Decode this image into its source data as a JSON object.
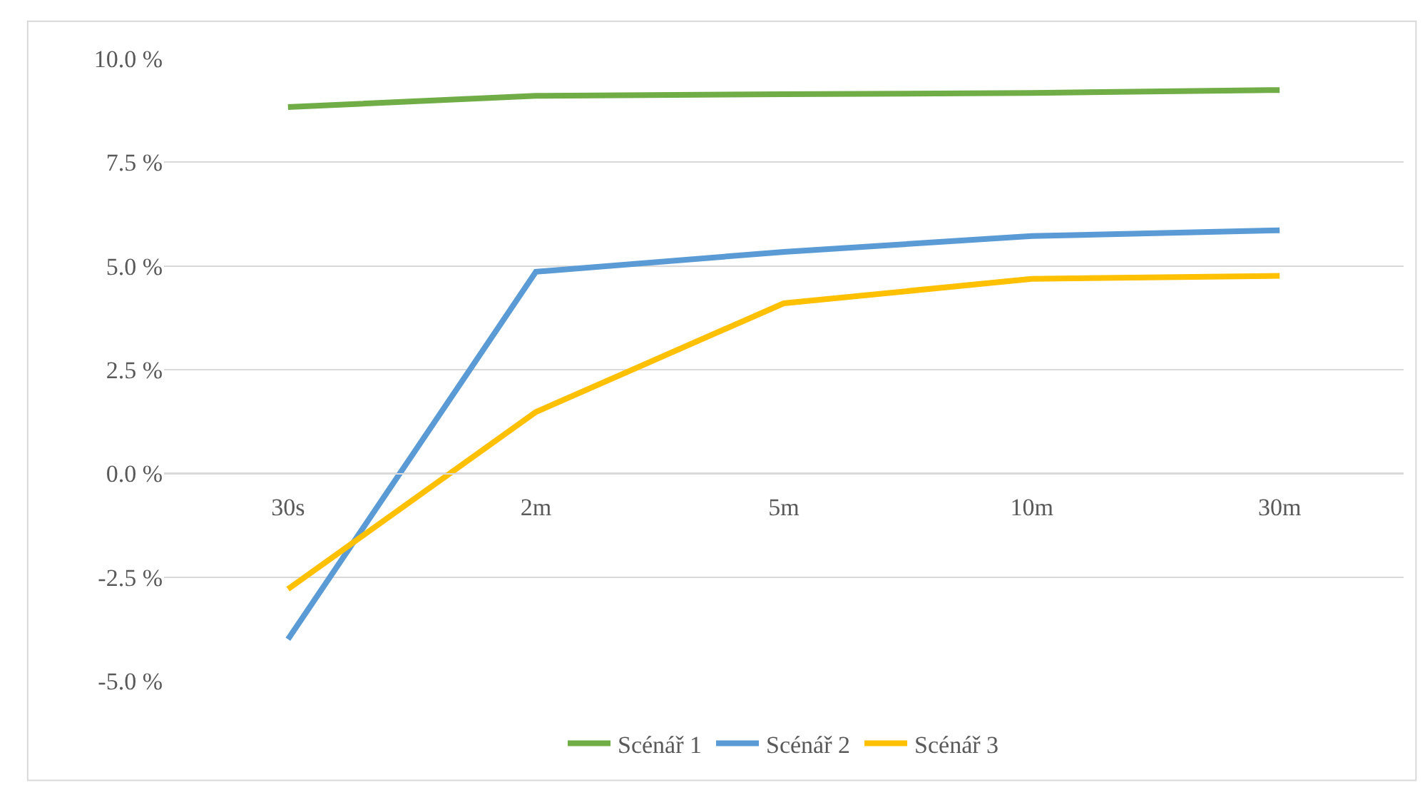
{
  "chart_data": {
    "type": "line",
    "categories": [
      "30s",
      "2m",
      "5m",
      "10m",
      "30m"
    ],
    "series": [
      {
        "name": "Scénář 1",
        "color": "#70ad47",
        "values": [
          8.83,
          9.1,
          9.14,
          9.17,
          9.24
        ]
      },
      {
        "name": "Scénář 2",
        "color": "#5b9bd5",
        "values": [
          -4.0,
          4.86,
          5.34,
          5.72,
          5.86
        ]
      },
      {
        "name": "Scénář 3",
        "color": "#ffc000",
        "values": [
          -2.79,
          1.48,
          4.1,
          4.69,
          4.76
        ]
      }
    ],
    "ylim": [
      -5,
      10
    ],
    "yticks": [
      {
        "value": -5,
        "label": "-5.0 %"
      },
      {
        "value": -2.5,
        "label": "-2.5 %"
      },
      {
        "value": 0,
        "label": "0.0 %"
      },
      {
        "value": 2.5,
        "label": "2.5 %"
      },
      {
        "value": 5,
        "label": "5.0 %"
      },
      {
        "value": 7.5,
        "label": "7.5 %"
      },
      {
        "value": 10,
        "label": "10.0 %"
      }
    ],
    "grid": "y",
    "legend": "bottom",
    "marker": "none",
    "line_style": "solid"
  }
}
